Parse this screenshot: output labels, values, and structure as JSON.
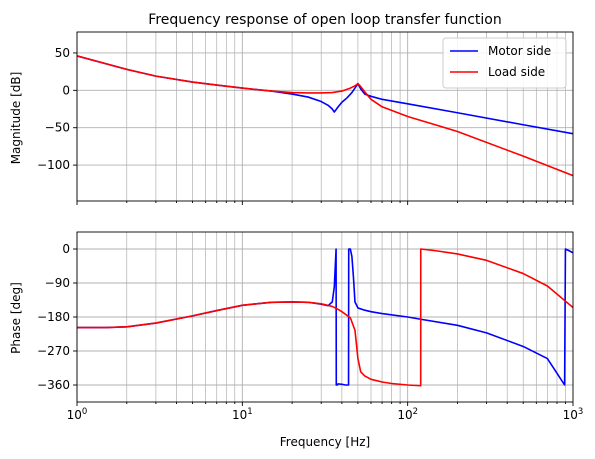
{
  "chart_data": [
    {
      "type": "line",
      "title": "Frequency response of open loop transfer function",
      "xlabel": "",
      "ylabel": "Magnitude [dB]",
      "xscale": "log",
      "xlim": [
        1,
        1000
      ],
      "ylim": [
        -148,
        78
      ],
      "yticks": [
        50,
        0,
        -50,
        -100
      ],
      "ytick_labels": [
        "50",
        "0",
        "−50",
        "−100"
      ],
      "xtick_labels_visible": false,
      "grid": true,
      "legend": "top-right",
      "series": [
        {
          "name": "Motor side",
          "color": "#0000ff",
          "x": [
            1,
            2,
            3,
            5,
            7,
            10,
            15,
            20,
            25,
            30,
            33,
            35,
            36,
            38,
            40,
            43,
            46,
            48,
            50,
            52,
            55,
            60,
            70,
            100,
            200,
            500,
            1000
          ],
          "y": [
            46,
            28,
            19,
            11,
            7,
            3,
            -1,
            -5,
            -9,
            -15,
            -20,
            -25,
            -29,
            -22,
            -16,
            -10,
            -3,
            3,
            9,
            2,
            -5,
            -8,
            -12,
            -18,
            -30,
            -46,
            -58
          ]
        },
        {
          "name": "Load side",
          "color": "#ff0000",
          "x": [
            1,
            2,
            3,
            5,
            7,
            10,
            15,
            20,
            25,
            30,
            35,
            40,
            45,
            48,
            50,
            52,
            55,
            60,
            70,
            100,
            200,
            500,
            1000
          ],
          "y": [
            46,
            28,
            19,
            11,
            7,
            3,
            -1,
            -3,
            -3.5,
            -3.5,
            -3,
            -1,
            3,
            6,
            9,
            5,
            -2,
            -12,
            -22,
            -35,
            -55,
            -88,
            -114
          ]
        }
      ]
    },
    {
      "type": "line",
      "title": "",
      "xlabel": "Frequency [Hz]",
      "ylabel": "Phase [deg]",
      "xscale": "log",
      "xlim": [
        1,
        1000
      ],
      "ylim": [
        -405,
        45
      ],
      "yticks": [
        0,
        -90,
        -180,
        -270,
        -360
      ],
      "ytick_labels": [
        "0",
        "−90",
        "−180",
        "−270",
        "−360"
      ],
      "xticks": [
        1,
        10,
        100,
        1000
      ],
      "xtick_labels": [
        {
          "base": "10",
          "exp": "0"
        },
        {
          "base": "10",
          "exp": "1"
        },
        {
          "base": "10",
          "exp": "2"
        },
        {
          "base": "10",
          "exp": "3"
        }
      ],
      "grid": true,
      "series": [
        {
          "name": "Motor side",
          "color": "#0000ff",
          "x": [
            1,
            1.5,
            2,
            3,
            5,
            7,
            10,
            15,
            20,
            25,
            30,
            33,
            35,
            36,
            36.9,
            37,
            37.5,
            37.9,
            38,
            40,
            42,
            43.9,
            44,
            45,
            46,
            47,
            48,
            50,
            55,
            60,
            70,
            100,
            120,
            200,
            300,
            500,
            700,
            890,
            900,
            950,
            1000
          ],
          "y": [
            -208,
            -208,
            -206,
            -196,
            -177,
            -163,
            -149,
            -141,
            -140,
            -141,
            -146,
            -150,
            -140,
            -100,
            0,
            -360,
            -360,
            -357,
            -357,
            -358,
            -360,
            -360,
            0,
            0,
            -20,
            -75,
            -140,
            -156,
            -162,
            -166,
            -171,
            -180,
            -186,
            -202,
            -222,
            -258,
            -290,
            -360,
            0,
            -5,
            -10
          ]
        },
        {
          "name": "Load side",
          "color": "#ff0000",
          "x": [
            1,
            1.5,
            2,
            3,
            5,
            7,
            10,
            15,
            20,
            25,
            30,
            35,
            38,
            40,
            45,
            48,
            50,
            52,
            55,
            60,
            70,
            80,
            100,
            119.9,
            120,
            150,
            200,
            300,
            500,
            700,
            1000
          ],
          "y": [
            -208,
            -208,
            -206,
            -196,
            -177,
            -163,
            -149,
            -141,
            -140,
            -141,
            -145,
            -152,
            -160,
            -166,
            -182,
            -215,
            -290,
            -325,
            -336,
            -345,
            -352,
            -356,
            -360,
            -362,
            0,
            -5,
            -13,
            -30,
            -65,
            -98,
            -155
          ]
        }
      ]
    }
  ]
}
